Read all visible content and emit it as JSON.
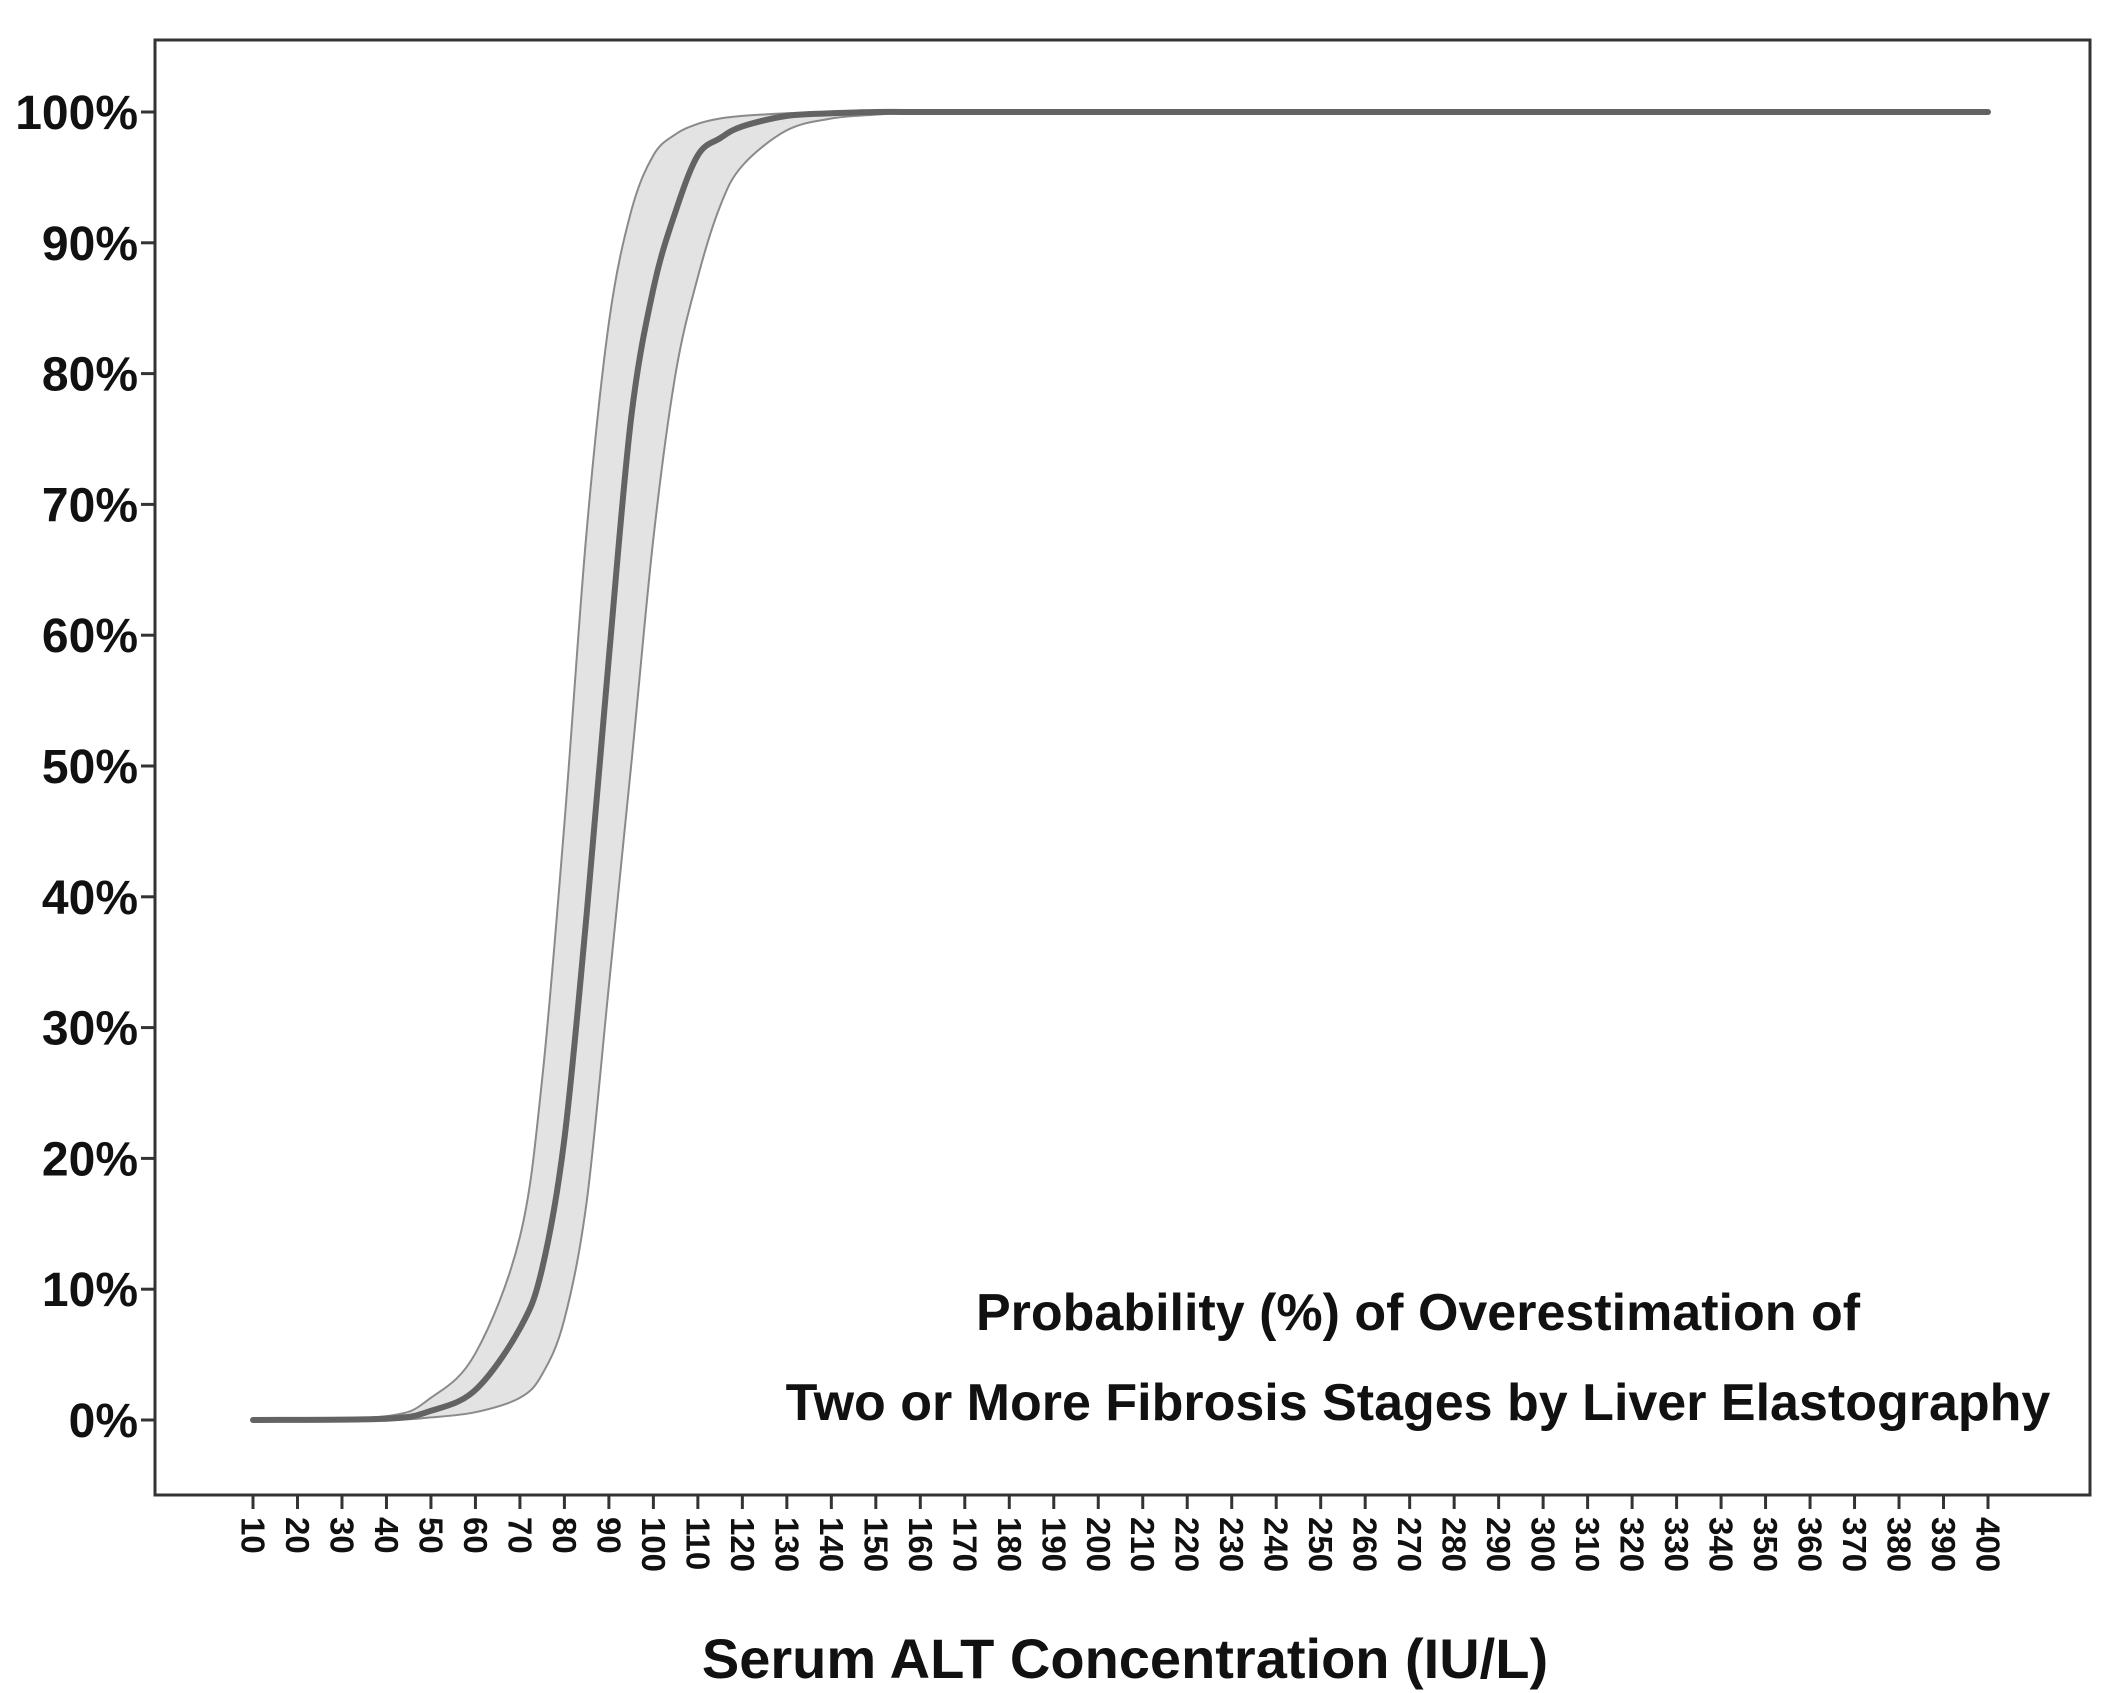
{
  "chart_data": {
    "type": "area",
    "annotation": [
      "Probability (%) of Overestimation of",
      "Two or More Fibrosis Stages by Liver Elastography"
    ],
    "xlabel": "Serum ALT Concentration (IU/L)",
    "ylabel": "",
    "xlim": [
      10,
      400
    ],
    "ylim": [
      0,
      100
    ],
    "x_ticks": [
      10,
      20,
      30,
      40,
      50,
      60,
      70,
      80,
      90,
      100,
      110,
      120,
      130,
      140,
      150,
      160,
      170,
      180,
      190,
      200,
      210,
      220,
      230,
      240,
      250,
      260,
      270,
      280,
      290,
      300,
      310,
      320,
      330,
      340,
      350,
      360,
      370,
      380,
      390,
      400
    ],
    "y_ticks": [
      "0%",
      "10%",
      "20%",
      "30%",
      "40%",
      "50%",
      "60%",
      "70%",
      "80%",
      "90%",
      "100%"
    ],
    "y_tick_values": [
      0,
      10,
      20,
      30,
      40,
      50,
      60,
      70,
      80,
      90,
      100
    ],
    "grid": false,
    "series": [
      {
        "role": "estimate",
        "x": [
          10,
          40,
          50,
          60,
          70,
          75,
          80,
          85,
          90,
          95,
          100,
          105,
          110,
          115,
          120,
          130,
          140,
          150,
          160,
          170,
          180,
          200,
          250,
          300,
          350,
          400
        ],
        "values": [
          0,
          0.1,
          0.7,
          2.3,
          7.0,
          11.6,
          21.5,
          38.7,
          58.3,
          76.6,
          86.5,
          92.4,
          96.7,
          98.0,
          98.9,
          99.7,
          99.9,
          100,
          100,
          100,
          100,
          100,
          100,
          100,
          100,
          100
        ]
      },
      {
        "role": "upper_bound",
        "x": [
          10,
          40,
          50,
          60,
          70,
          75,
          80,
          85,
          90,
          95,
          100,
          105,
          110,
          115,
          120,
          130,
          140,
          150,
          160,
          170,
          180,
          200,
          250,
          300,
          350,
          400
        ],
        "values": [
          0,
          0.3,
          1.7,
          5.1,
          14.0,
          26.1,
          45.6,
          68.0,
          83.9,
          92.4,
          96.7,
          98.3,
          99.1,
          99.5,
          99.7,
          99.9,
          100,
          100,
          100,
          100,
          100,
          100,
          100,
          100,
          100,
          100
        ]
      },
      {
        "role": "lower_bound",
        "x": [
          10,
          40,
          50,
          60,
          70,
          75,
          80,
          85,
          90,
          95,
          100,
          105,
          110,
          115,
          120,
          130,
          140,
          150,
          160,
          170,
          180,
          200,
          250,
          300,
          350,
          400
        ],
        "values": [
          0,
          0,
          0.2,
          0.6,
          1.7,
          3.5,
          7.7,
          16.7,
          33.2,
          50.0,
          67.4,
          80.0,
          87.4,
          92.8,
          95.9,
          98.6,
          99.5,
          99.8,
          100,
          100,
          100,
          100,
          100,
          100,
          100,
          100
        ]
      }
    ],
    "colors": {
      "band_fill": "#e3e3e3",
      "band_edge": "#8a8a8a",
      "line": "#636363",
      "axis": "#333333",
      "text": "#111111"
    }
  }
}
